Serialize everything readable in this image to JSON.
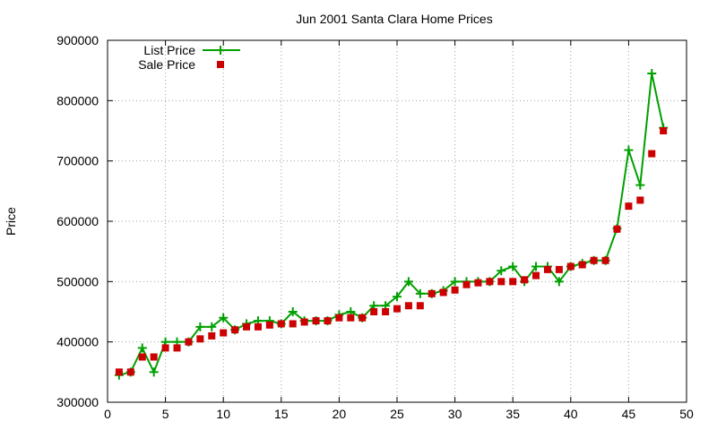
{
  "chart_data": {
    "type": "line",
    "title": "Jun 2001 Santa Clara Home Prices",
    "xlabel": "",
    "ylabel": "Price",
    "xlim": [
      0,
      50
    ],
    "ylim": [
      300000,
      900000
    ],
    "x_ticks": [
      0,
      5,
      10,
      15,
      20,
      25,
      30,
      35,
      40,
      45,
      50
    ],
    "y_ticks": [
      300000,
      400000,
      500000,
      600000,
      700000,
      800000,
      900000
    ],
    "grid": true,
    "legend_position": "top-left",
    "series": [
      {
        "name": "List Price",
        "style": "line-plus",
        "color": "#00a000",
        "x": [
          1,
          2,
          3,
          4,
          5,
          6,
          7,
          8,
          9,
          10,
          11,
          12,
          13,
          14,
          15,
          16,
          17,
          18,
          19,
          20,
          21,
          22,
          23,
          24,
          25,
          26,
          27,
          28,
          29,
          30,
          31,
          32,
          33,
          34,
          35,
          36,
          37,
          38,
          39,
          40,
          41,
          42,
          43,
          44,
          45,
          46,
          47,
          48
        ],
        "values": [
          345000,
          350000,
          390000,
          350000,
          400000,
          400000,
          400000,
          425000,
          425000,
          440000,
          420000,
          430000,
          435000,
          435000,
          430000,
          450000,
          435000,
          435000,
          435000,
          445000,
          450000,
          440000,
          460000,
          460000,
          475000,
          500000,
          480000,
          480000,
          485000,
          500000,
          500000,
          500000,
          500000,
          518000,
          525000,
          500000,
          525000,
          525000,
          500000,
          525000,
          530000,
          535000,
          535000,
          588000,
          718000,
          660000,
          845000,
          755000
        ]
      },
      {
        "name": "Sale Price",
        "style": "square-points",
        "color": "#cc0000",
        "x": [
          1,
          2,
          3,
          4,
          5,
          6,
          7,
          8,
          9,
          10,
          11,
          12,
          13,
          14,
          15,
          16,
          17,
          18,
          19,
          20,
          21,
          22,
          23,
          24,
          25,
          26,
          27,
          28,
          29,
          30,
          31,
          32,
          33,
          34,
          35,
          36,
          37,
          38,
          39,
          40,
          41,
          42,
          43,
          44,
          45,
          46,
          47,
          48
        ],
        "values": [
          350000,
          350000,
          375000,
          375000,
          390000,
          390000,
          400000,
          405000,
          410000,
          415000,
          420000,
          425000,
          425000,
          428000,
          430000,
          430000,
          433000,
          435000,
          435000,
          440000,
          440000,
          440000,
          450000,
          450000,
          455000,
          460000,
          460000,
          480000,
          482000,
          486000,
          495000,
          498000,
          500000,
          500000,
          500000,
          503000,
          510000,
          520000,
          520000,
          525000,
          528000,
          535000,
          535000,
          587000,
          625000,
          635000,
          712000,
          750000
        ]
      }
    ]
  }
}
